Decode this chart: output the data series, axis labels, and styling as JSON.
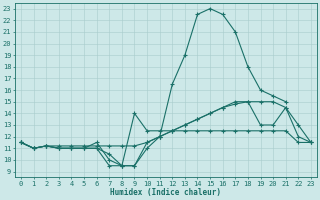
{
  "bg_color": "#cde8e8",
  "line_color": "#1a7068",
  "grid_color": "#a8cccc",
  "xlabel": "Humidex (Indice chaleur)",
  "xlim": [
    -0.5,
    23.5
  ],
  "ylim": [
    8.5,
    23.5
  ],
  "yticks": [
    9,
    10,
    11,
    12,
    13,
    14,
    15,
    16,
    17,
    18,
    19,
    20,
    21,
    22,
    23
  ],
  "xticks": [
    0,
    1,
    2,
    3,
    4,
    5,
    6,
    7,
    8,
    9,
    10,
    11,
    12,
    13,
    14,
    15,
    16,
    17,
    18,
    19,
    20,
    21,
    22,
    23
  ],
  "lines": [
    {
      "x": [
        0,
        1,
        2,
        3,
        4,
        5,
        6,
        7,
        8,
        9,
        10,
        11,
        12,
        13,
        14,
        15,
        16,
        17,
        18,
        19,
        20,
        21,
        22,
        23
      ],
      "y": [
        11.5,
        11.0,
        11.2,
        11.0,
        11.0,
        11.0,
        11.5,
        10.0,
        9.5,
        9.5,
        11.0,
        12.0,
        16.5,
        19.0,
        22.5,
        23.0,
        22.5,
        21.0,
        18.0,
        16.0,
        15.5,
        15.0,
        null,
        null
      ]
    },
    {
      "x": [
        0,
        1,
        2,
        3,
        4,
        5,
        6,
        7,
        8,
        9,
        10,
        11,
        12,
        13,
        14,
        15,
        16,
        17,
        18,
        19,
        20,
        21,
        22,
        23
      ],
      "y": [
        11.5,
        11.0,
        11.2,
        11.2,
        11.2,
        11.2,
        11.2,
        11.2,
        11.2,
        11.2,
        11.5,
        12.0,
        12.5,
        13.0,
        13.5,
        14.0,
        14.5,
        14.8,
        15.0,
        15.0,
        15.0,
        14.5,
        12.0,
        11.5
      ]
    },
    {
      "x": [
        0,
        1,
        2,
        3,
        4,
        5,
        6,
        7,
        8,
        9,
        10,
        11,
        12,
        13,
        14,
        15,
        16,
        17,
        18,
        19,
        20,
        21,
        22,
        23
      ],
      "y": [
        11.5,
        11.0,
        11.2,
        11.0,
        11.0,
        11.0,
        11.0,
        9.5,
        9.5,
        14.0,
        12.5,
        12.5,
        12.5,
        13.0,
        13.5,
        14.0,
        14.5,
        15.0,
        15.0,
        13.0,
        13.0,
        14.5,
        13.0,
        11.5
      ]
    },
    {
      "x": [
        0,
        1,
        2,
        3,
        4,
        5,
        6,
        7,
        8,
        9,
        10,
        11,
        12,
        13,
        14,
        15,
        16,
        17,
        18,
        19,
        20,
        21,
        22,
        23
      ],
      "y": [
        11.5,
        11.0,
        11.2,
        11.0,
        11.0,
        11.0,
        11.0,
        10.5,
        9.5,
        9.5,
        11.5,
        12.0,
        12.5,
        12.5,
        12.5,
        12.5,
        12.5,
        12.5,
        12.5,
        12.5,
        12.5,
        12.5,
        11.5,
        11.5
      ]
    }
  ]
}
